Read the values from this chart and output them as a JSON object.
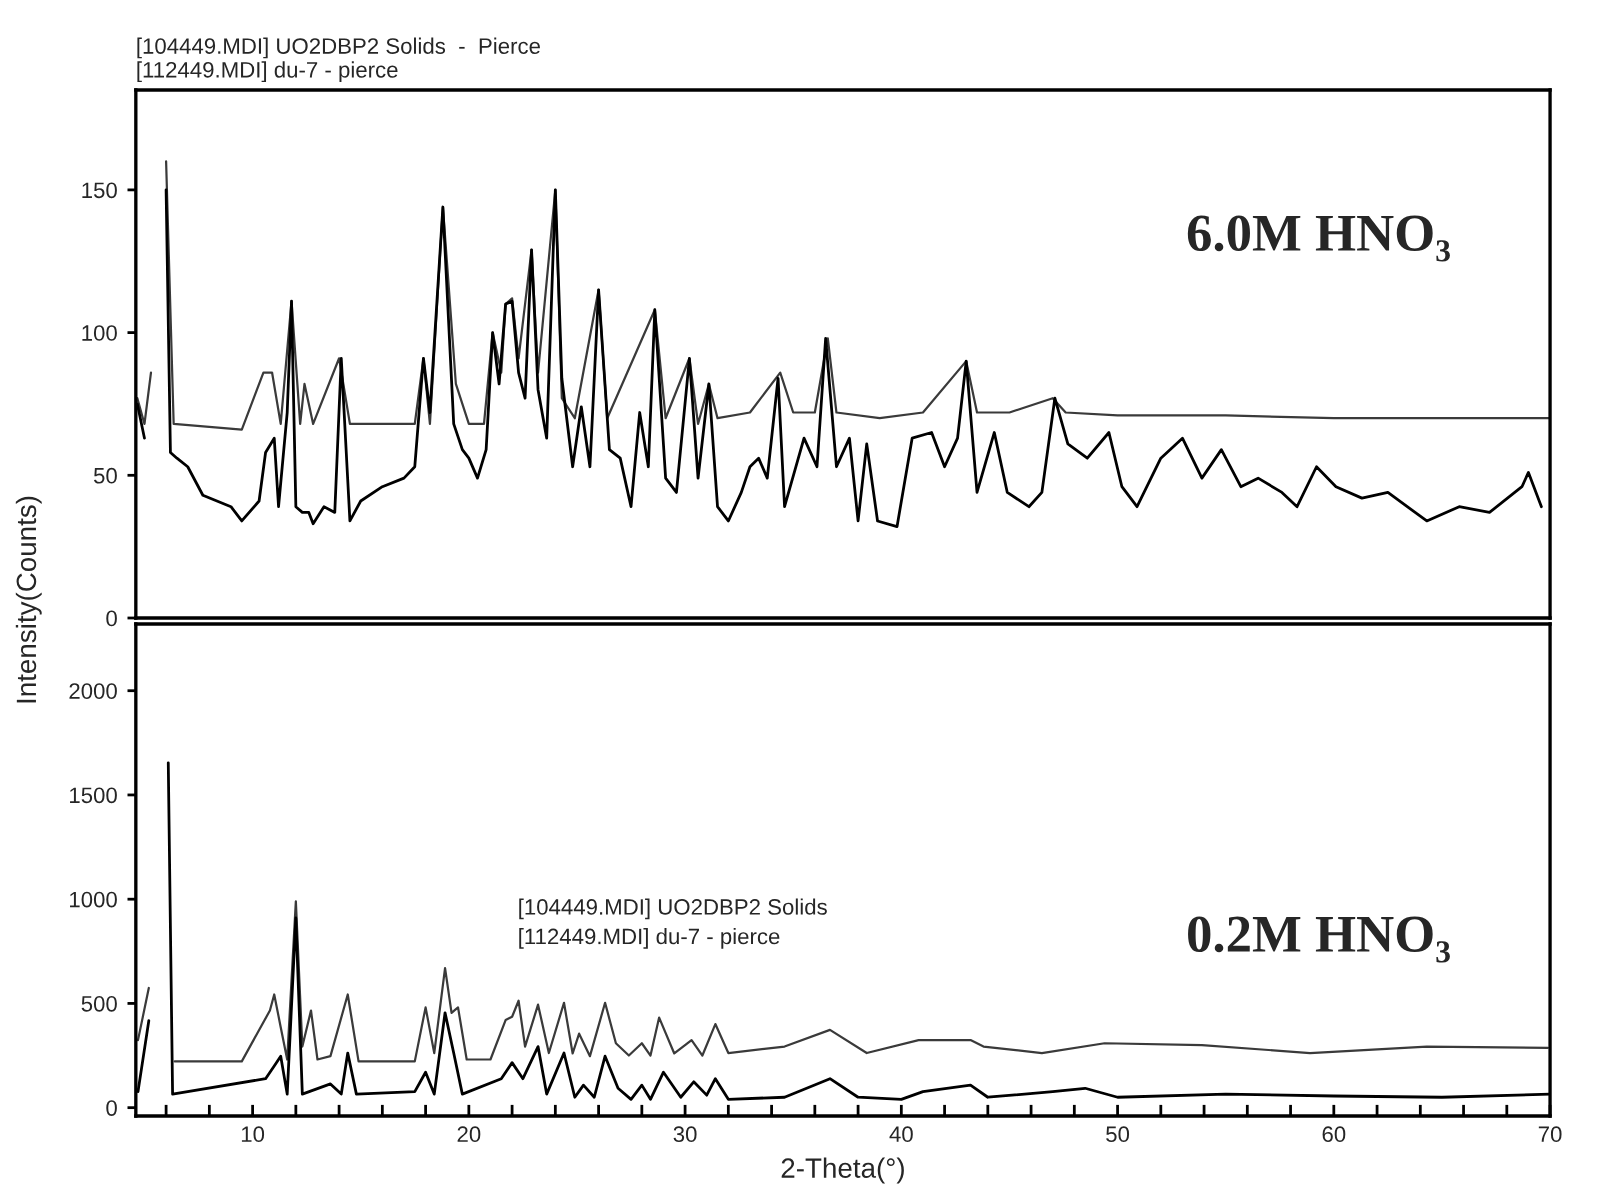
{
  "chart_data": [
    {
      "type": "line",
      "ylabel": "Intensity(Counts)",
      "annotations": [
        "[104449.MDI] UO2DBP2 Solids  -  Pierce",
        "[112449.MDI] du-7 - pierce",
        "6.0M HNO₃"
      ],
      "xlim": [
        4.6,
        70
      ],
      "ylim": [
        0,
        185
      ],
      "yticks": [
        0,
        50,
        100,
        150
      ],
      "tick_labels": "y",
      "grid": false,
      "series": [
        {
          "color": "#3a3a3a",
          "x": [
            4.67,
            5.0,
            5.3,
            5.55,
            6.0,
            6.35,
            9.5,
            10.5,
            10.9,
            11.3,
            11.8,
            12.2,
            12.4,
            12.8,
            14.0,
            14.5,
            17.5,
            17.9,
            18.2,
            18.8,
            19.4,
            20.0,
            20.7,
            21.1,
            21.5,
            21.7,
            22.0,
            22.3,
            22.9,
            23.2,
            24.0,
            24.3,
            24.9,
            26.0,
            26.4,
            28.6,
            29.1,
            30.2,
            30.6,
            31.1,
            31.5,
            33.0,
            34.4,
            35.0,
            36.0,
            36.6,
            37.0,
            39.0,
            41.0,
            43.0,
            43.5,
            45.0,
            47.0,
            47.6,
            50.0,
            55.0,
            60.0,
            65.0,
            70.0
          ],
          "values": [
            77,
            68,
            86,
            null,
            160,
            68,
            66,
            86,
            86,
            68,
            111,
            68,
            82,
            68,
            91,
            68,
            68,
            91,
            68,
            144,
            82,
            68,
            68,
            100,
            86,
            110,
            112,
            91,
            129,
            86,
            150,
            77,
            70,
            115,
            70,
            108,
            70,
            91,
            68,
            82,
            70,
            72,
            86,
            72,
            72,
            98,
            72,
            70,
            72,
            90,
            72,
            72,
            77,
            72,
            71,
            71,
            70,
            70,
            70
          ]
        },
        {
          "color": "#000000",
          "x": [
            4.67,
            5.0,
            5.55,
            6.0,
            6.2,
            6.5,
            7.0,
            7.7,
            9.0,
            9.5,
            10.3,
            10.6,
            11.0,
            11.2,
            11.6,
            11.8,
            12.0,
            12.3,
            12.6,
            12.8,
            13.3,
            13.8,
            14.1,
            14.5,
            15.0,
            16.0,
            17.0,
            17.5,
            17.9,
            18.2,
            18.8,
            19.3,
            19.7,
            20.0,
            20.4,
            20.8,
            21.1,
            21.4,
            21.7,
            22.0,
            22.3,
            22.6,
            22.9,
            23.2,
            23.6,
            24.0,
            24.3,
            24.8,
            25.2,
            25.6,
            26.0,
            26.5,
            27.0,
            27.5,
            27.9,
            28.3,
            28.6,
            29.1,
            29.6,
            30.2,
            30.6,
            31.1,
            31.5,
            32.0,
            32.6,
            33.0,
            33.4,
            33.8,
            34.3,
            34.6,
            35.5,
            36.1,
            36.5,
            37.0,
            37.6,
            38.0,
            38.4,
            38.9,
            39.8,
            40.5,
            41.4,
            42.0,
            42.6,
            43.0,
            43.5,
            44.3,
            44.9,
            45.9,
            46.5,
            47.1,
            47.7,
            48.6,
            49.6,
            50.2,
            50.9,
            52.0,
            53.0,
            53.9,
            54.8,
            55.7,
            56.5,
            57.6,
            58.3,
            59.2,
            60.1,
            61.3,
            62.5,
            64.3,
            65.8,
            67.2,
            68.7,
            69.0,
            69.6
          ],
          "values": [
            75,
            63,
            null,
            150,
            58,
            56,
            53,
            43,
            39,
            34,
            41,
            58,
            63,
            39,
            72,
            111,
            39,
            37,
            37,
            33,
            39,
            37,
            91,
            34,
            41,
            46,
            49,
            53,
            91,
            72,
            144,
            68,
            59,
            56,
            49,
            59,
            100,
            82,
            110,
            111,
            86,
            77,
            129,
            80,
            63,
            150,
            84,
            53,
            74,
            53,
            115,
            59,
            56,
            39,
            72,
            53,
            108,
            49,
            44,
            91,
            49,
            82,
            39,
            34,
            44,
            53,
            56,
            49,
            84,
            39,
            63,
            53,
            98,
            53,
            63,
            34,
            61,
            34,
            32,
            63,
            65,
            53,
            63,
            90,
            44,
            65,
            44,
            39,
            44,
            77,
            61,
            56,
            65,
            46,
            39,
            56,
            63,
            49,
            59,
            46,
            49,
            44,
            39,
            53,
            46,
            42,
            44,
            34,
            39,
            37,
            46,
            51,
            39
          ]
        }
      ]
    },
    {
      "type": "line",
      "xlabel": "2-Theta(°)",
      "annotations": [
        "[104449.MDI] UO2DBP2 Solids",
        "[112449.MDI] du-7 - pierce",
        "0.2M HNO₃"
      ],
      "xlim": [
        4.6,
        70
      ],
      "ylim": [
        -40,
        2320
      ],
      "yticks": [
        0,
        500,
        1000,
        1500,
        2000
      ],
      "grid": false,
      "xticks": [
        {
          "value": 6,
          "label": null
        },
        {
          "value": 8,
          "label": null
        },
        10,
        {
          "value": 12,
          "label": null
        },
        {
          "value": 14,
          "label": null
        },
        {
          "value": 16,
          "label": null
        },
        {
          "value": 18,
          "label": null
        },
        20,
        {
          "value": 22,
          "label": null
        },
        {
          "value": 24,
          "label": null
        },
        {
          "value": 26,
          "label": null
        },
        {
          "value": 28,
          "label": null
        },
        30,
        {
          "value": 32,
          "label": null
        },
        {
          "value": 34,
          "label": null
        },
        {
          "value": 36,
          "label": null
        },
        {
          "value": 38,
          "label": null
        },
        40,
        {
          "value": 42,
          "label": null
        },
        {
          "value": 44,
          "label": null
        },
        {
          "value": 46,
          "label": null
        },
        {
          "value": 48,
          "label": null
        },
        50,
        {
          "value": 52,
          "label": null
        },
        {
          "value": 54,
          "label": null
        },
        {
          "value": 56,
          "label": null
        },
        {
          "value": 58,
          "label": null
        },
        60,
        {
          "value": 62,
          "label": null
        },
        {
          "value": 64,
          "label": null
        },
        {
          "value": 66,
          "label": null
        },
        {
          "value": 68,
          "label": null
        },
        70
      ],
      "series": [
        {
          "color": "#3a3a3a",
          "x": [
            4.7,
            5.2,
            5.5,
            6.1,
            6.4,
            9.5,
            10.8,
            11.0,
            11.3,
            11.6,
            12.0,
            12.3,
            12.7,
            13.0,
            13.6,
            14.4,
            14.9,
            17.5,
            18.0,
            18.4,
            18.9,
            19.2,
            19.5,
            19.9,
            21.0,
            21.7,
            22.0,
            22.3,
            22.6,
            23.2,
            23.7,
            24.4,
            24.8,
            25.1,
            25.6,
            26.3,
            26.8,
            27.4,
            28.0,
            28.4,
            28.8,
            29.5,
            30.3,
            30.8,
            31.4,
            32.0,
            34.6,
            36.7,
            38.4,
            40.8,
            43.2,
            43.8,
            46.5,
            49.4,
            53.9,
            58.9,
            64.3,
            69.9
          ],
          "values": [
            324,
            574,
            null,
            null,
            222,
            222,
            466,
            543,
            386,
            231,
            990,
            293,
            466,
            231,
            247,
            543,
            222,
            222,
            481,
            262,
            669,
            455,
            481,
            231,
            231,
            420,
            436,
            513,
            293,
            494,
            262,
            503,
            260,
            355,
            247,
            503,
            309,
            250,
            309,
            250,
            432,
            260,
            324,
            250,
            401,
            262,
            293,
            373,
            262,
            324,
            324,
            293,
            262,
            309,
            300,
            262,
            293,
            287
          ]
        },
        {
          "color": "#000000",
          "x": [
            4.7,
            5.2,
            5.5,
            6.1,
            6.3,
            10.6,
            11.0,
            11.3,
            11.6,
            12.0,
            12.3,
            13.6,
            14.1,
            14.4,
            14.8,
            17.5,
            18.0,
            18.4,
            18.9,
            19.3,
            19.7,
            21.5,
            22.0,
            22.5,
            23.2,
            23.6,
            24.4,
            24.9,
            25.3,
            25.8,
            26.3,
            26.9,
            27.5,
            28.0,
            28.4,
            29.0,
            29.8,
            30.4,
            31.0,
            31.4,
            32.0,
            34.6,
            36.7,
            38.0,
            40.0,
            41.0,
            43.2,
            44.0,
            47.0,
            48.5,
            50.0,
            55.0,
            60.0,
            65.0,
            70.0
          ],
          "values": [
            77,
            417,
            null,
            1654,
            65,
            139,
            200,
            247,
            65,
            910,
            65,
            114,
            65,
            262,
            65,
            77,
            170,
            65,
            455,
            262,
            65,
            139,
            216,
            139,
            293,
            65,
            262,
            50,
            108,
            50,
            247,
            93,
            40,
            108,
            40,
            170,
            50,
            124,
            60,
            139,
            40,
            50,
            139,
            50,
            40,
            77,
            108,
            50,
            77,
            93,
            50,
            65,
            56,
            50,
            65
          ]
        }
      ]
    }
  ]
}
